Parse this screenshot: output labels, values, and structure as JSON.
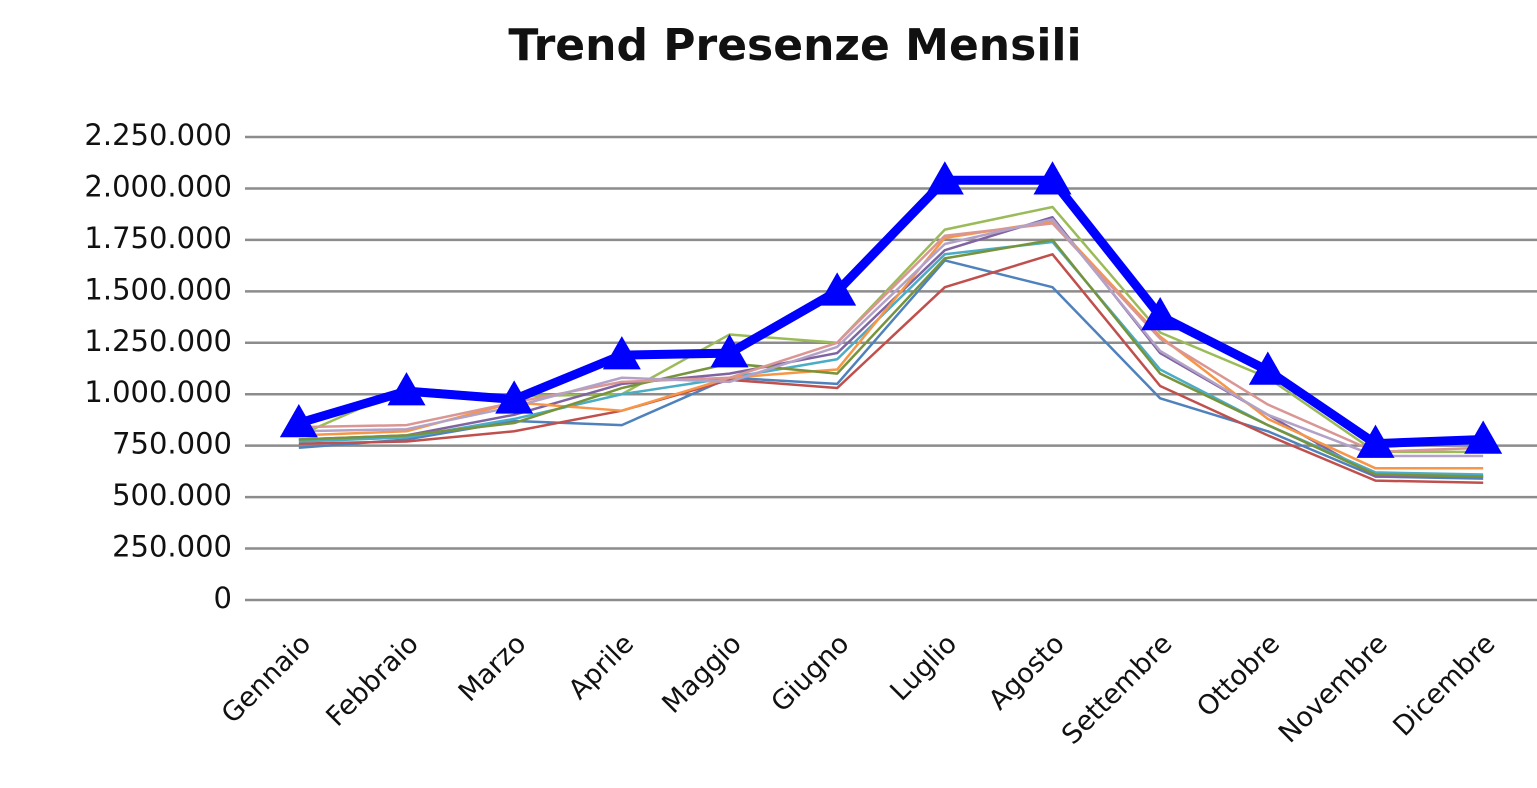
{
  "chart_data": {
    "type": "line",
    "title": "Trend Presenze Mensili",
    "categories": [
      "Gennaio",
      "Febbraio",
      "Marzo",
      "Aprile",
      "Maggio",
      "Giugno",
      "Luglio",
      "Agosto",
      "Settembre",
      "Ottobre",
      "Novembre",
      "Dicembre"
    ],
    "ylim": [
      0,
      2250000
    ],
    "yticks": [
      0,
      {
        "value": 250000,
        "label": "250.000"
      },
      {
        "value": 500000,
        "label": "500.000"
      },
      {
        "value": 750000,
        "label": "750.000"
      },
      {
        "value": 1000000,
        "label": "1.000.000"
      },
      {
        "value": 1250000,
        "label": "1.250.000"
      },
      {
        "value": 1500000,
        "label": "1.500.000"
      },
      {
        "value": 1750000,
        "label": "1.750.000"
      },
      {
        "value": 2000000,
        "label": "2.000.000"
      },
      {
        "value": 2250000,
        "label": "2.250.000"
      }
    ],
    "grid": true,
    "series": [
      {
        "color": "#4f81bd",
        "values": [
          740000,
          780000,
          870000,
          850000,
          1080000,
          1050000,
          1650000,
          1520000,
          980000,
          820000,
          600000,
          590000
        ]
      },
      {
        "color": "#c0504d",
        "values": [
          760000,
          770000,
          820000,
          920000,
          1070000,
          1030000,
          1520000,
          1680000,
          1040000,
          800000,
          580000,
          570000
        ]
      },
      {
        "color": "#9bbb59",
        "values": [
          800000,
          1030000,
          990000,
          1000000,
          1290000,
          1250000,
          1800000,
          1910000,
          1300000,
          1080000,
          720000,
          720000
        ]
      },
      {
        "color": "#8064a2",
        "values": [
          780000,
          800000,
          900000,
          1050000,
          1100000,
          1200000,
          1700000,
          1860000,
          1200000,
          900000,
          600000,
          600000
        ]
      },
      {
        "color": "#4bacc6",
        "values": [
          770000,
          790000,
          880000,
          1000000,
          1080000,
          1170000,
          1680000,
          1740000,
          1120000,
          850000,
          620000,
          610000
        ]
      },
      {
        "color": "#f79646",
        "values": [
          800000,
          820000,
          960000,
          920000,
          1080000,
          1120000,
          1760000,
          1840000,
          1280000,
          880000,
          640000,
          640000
        ]
      },
      {
        "color": "#77933c",
        "values": [
          780000,
          800000,
          860000,
          1030000,
          1150000,
          1100000,
          1660000,
          1750000,
          1100000,
          850000,
          610000,
          600000
        ]
      },
      {
        "color": "#d99694",
        "values": [
          840000,
          850000,
          960000,
          1060000,
          1080000,
          1250000,
          1770000,
          1830000,
          1270000,
          950000,
          720000,
          740000
        ]
      },
      {
        "color": "#b3a2c7",
        "values": [
          820000,
          830000,
          940000,
          1080000,
          1060000,
          1230000,
          1730000,
          1850000,
          1210000,
          900000,
          700000,
          700000
        ]
      },
      {
        "color": "#0000ff",
        "marker": "triangle",
        "values": [
          860000,
          1015000,
          975000,
          1190000,
          1200000,
          1500000,
          2040000,
          2040000,
          1380000,
          1115000,
          760000,
          780000
        ]
      }
    ]
  }
}
